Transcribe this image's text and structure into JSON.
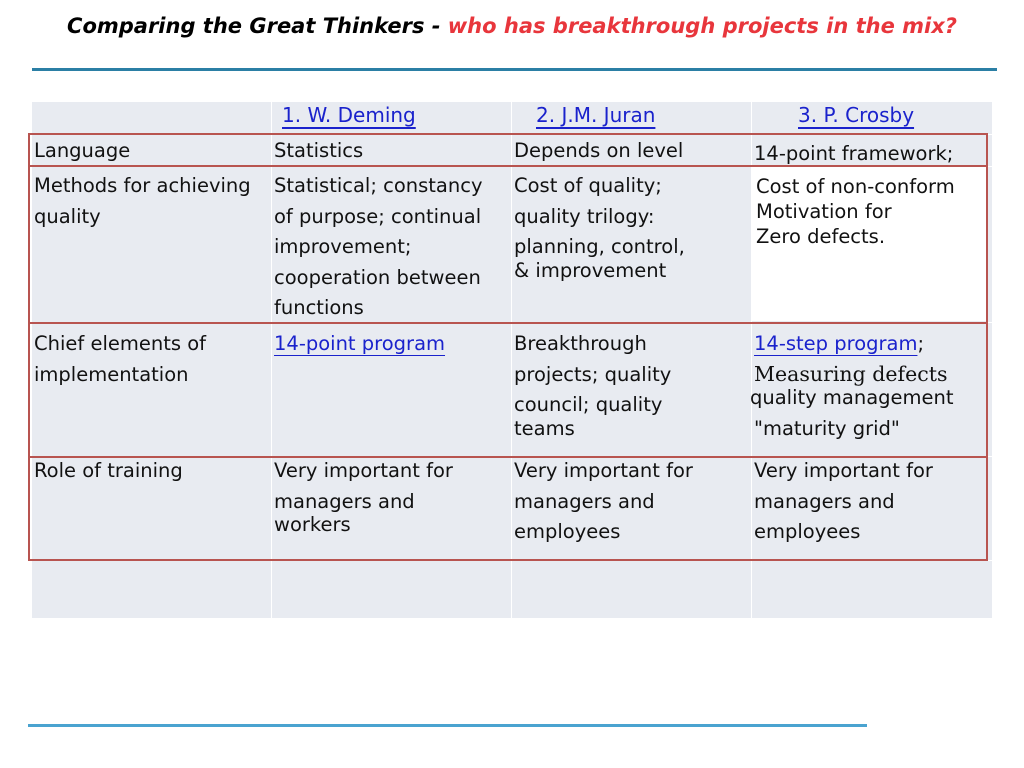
{
  "slide": {
    "title_black": "Comparing the Great Thinkers - ",
    "title_red": "who has breakthrough projects in the mix?",
    "colors": {
      "title_red": "#e8363c",
      "rule": "#2b7fa5",
      "box": "#b85450",
      "link": "#1a22cc"
    }
  },
  "table": {
    "headers": [
      "1. W. Deming",
      "2. J.M. Juran",
      "3. P. Crosby"
    ],
    "rows": [
      {
        "label": [
          "Language"
        ],
        "deming": [
          "Statistics"
        ],
        "juran": [
          "Depends on level"
        ],
        "crosby": [
          "14-point framework;"
        ]
      },
      {
        "label": [
          "Methods for achieving",
          "quality"
        ],
        "deming": [
          "Statistical; constancy",
          "of purpose; continual",
          "improvement;",
          "cooperation between",
          "functions"
        ],
        "juran": [
          "Cost of quality;",
          "quality trilogy:",
          "planning, control,",
          "& improvement"
        ],
        "crosby": [
          "Cost of non-conform",
          "Motivation for",
          "Zero defects."
        ]
      },
      {
        "label": [
          "Chief elements of",
          "implementation"
        ],
        "deming": [
          "14-point program"
        ],
        "juran": [
          "Breakthrough",
          "projects; quality",
          "council; quality",
          "teams"
        ],
        "crosby": [
          "14-step program",
          ";",
          "Measuring defects",
          "quality management",
          "\"maturity grid\""
        ]
      },
      {
        "label": [
          "Role of training"
        ],
        "deming": [
          "Very important for",
          "managers and",
          "workers"
        ],
        "juran": [
          "Very important for",
          "managers and",
          "employees"
        ],
        "crosby": [
          "Very important for",
          "managers and",
          "employees"
        ]
      }
    ]
  }
}
